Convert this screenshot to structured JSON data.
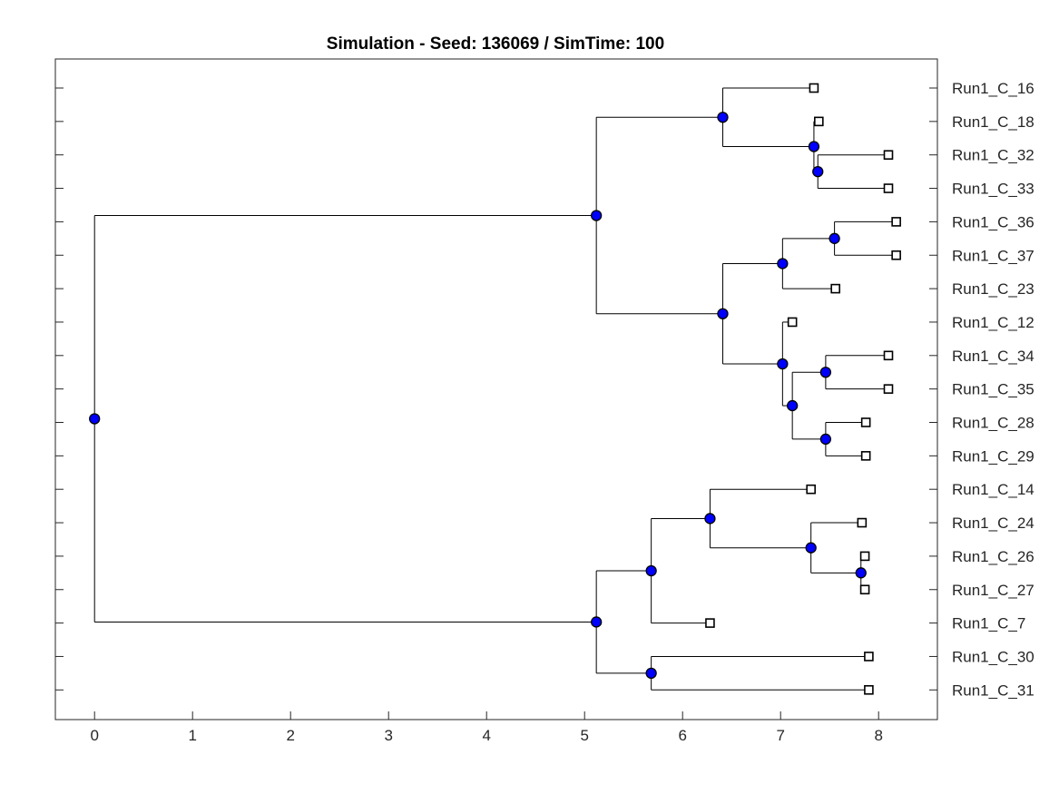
{
  "chart_data": {
    "type": "dendrogram",
    "title": "Simulation - Seed: 136069 / SimTime: 100",
    "xlabel": "",
    "ylabel": "",
    "xlim": [
      -0.4,
      8.6
    ],
    "x_ticks": [
      0,
      1,
      2,
      3,
      4,
      5,
      6,
      7,
      8
    ],
    "grid": false,
    "colors": {
      "internal_node": "#0000ff",
      "leaf_node": "#ffffff",
      "edge": "#000000"
    },
    "leaves": [
      {
        "id": "L16",
        "label": "Run1_C_16",
        "x": 7.34
      },
      {
        "id": "L18",
        "label": "Run1_C_18",
        "x": 7.39
      },
      {
        "id": "L32",
        "label": "Run1_C_32",
        "x": 8.1
      },
      {
        "id": "L33",
        "label": "Run1_C_33",
        "x": 8.1
      },
      {
        "id": "L36",
        "label": "Run1_C_36",
        "x": 8.18
      },
      {
        "id": "L37",
        "label": "Run1_C_37",
        "x": 8.18
      },
      {
        "id": "L23",
        "label": "Run1_C_23",
        "x": 7.56
      },
      {
        "id": "L12",
        "label": "Run1_C_12",
        "x": 7.12
      },
      {
        "id": "L34",
        "label": "Run1_C_34",
        "x": 8.1
      },
      {
        "id": "L35",
        "label": "Run1_C_35",
        "x": 8.1
      },
      {
        "id": "L28",
        "label": "Run1_C_28",
        "x": 7.87
      },
      {
        "id": "L29",
        "label": "Run1_C_29",
        "x": 7.87
      },
      {
        "id": "L14",
        "label": "Run1_C_14",
        "x": 7.31
      },
      {
        "id": "L24",
        "label": "Run1_C_24",
        "x": 7.83
      },
      {
        "id": "L26",
        "label": "Run1_C_26",
        "x": 7.86
      },
      {
        "id": "L27",
        "label": "Run1_C_27",
        "x": 7.86
      },
      {
        "id": "L7",
        "label": "Run1_C_7",
        "x": 6.28
      },
      {
        "id": "L30",
        "label": "Run1_C_30",
        "x": 7.9
      },
      {
        "id": "L31",
        "label": "Run1_C_31",
        "x": 7.9
      }
    ],
    "internal_nodes": [
      {
        "id": "n3233",
        "x": 7.38,
        "children": [
          "L32",
          "L33"
        ]
      },
      {
        "id": "n18",
        "x": 7.34,
        "children": [
          "L18",
          "n3233"
        ]
      },
      {
        "id": "n16",
        "x": 6.41,
        "children": [
          "L16",
          "n18"
        ]
      },
      {
        "id": "n3637",
        "x": 7.55,
        "children": [
          "L36",
          "L37"
        ]
      },
      {
        "id": "n23",
        "x": 7.02,
        "children": [
          "n3637",
          "L23"
        ]
      },
      {
        "id": "n3435",
        "x": 7.46,
        "children": [
          "L34",
          "L35"
        ]
      },
      {
        "id": "n2829",
        "x": 7.46,
        "children": [
          "L28",
          "L29"
        ]
      },
      {
        "id": "nB",
        "x": 7.12,
        "children": [
          "n3435",
          "n2829"
        ]
      },
      {
        "id": "n12",
        "x": 7.02,
        "children": [
          "L12",
          "nB"
        ]
      },
      {
        "id": "nA",
        "x": 6.41,
        "children": [
          "n23",
          "n12"
        ]
      },
      {
        "id": "nTop",
        "x": 5.12,
        "children": [
          "n16",
          "nA"
        ]
      },
      {
        "id": "n2627",
        "x": 7.82,
        "children": [
          "L26",
          "L27"
        ]
      },
      {
        "id": "n24",
        "x": 7.31,
        "children": [
          "L24",
          "n2627"
        ]
      },
      {
        "id": "n14",
        "x": 6.28,
        "children": [
          "L14",
          "n24"
        ]
      },
      {
        "id": "n7",
        "x": 5.68,
        "children": [
          "n14",
          "L7"
        ]
      },
      {
        "id": "n3031",
        "x": 5.68,
        "children": [
          "L30",
          "L31"
        ]
      },
      {
        "id": "nBot",
        "x": 5.12,
        "children": [
          "n7",
          "n3031"
        ]
      },
      {
        "id": "root",
        "x": 0.0,
        "children": [
          "nTop",
          "nBot"
        ]
      }
    ]
  }
}
